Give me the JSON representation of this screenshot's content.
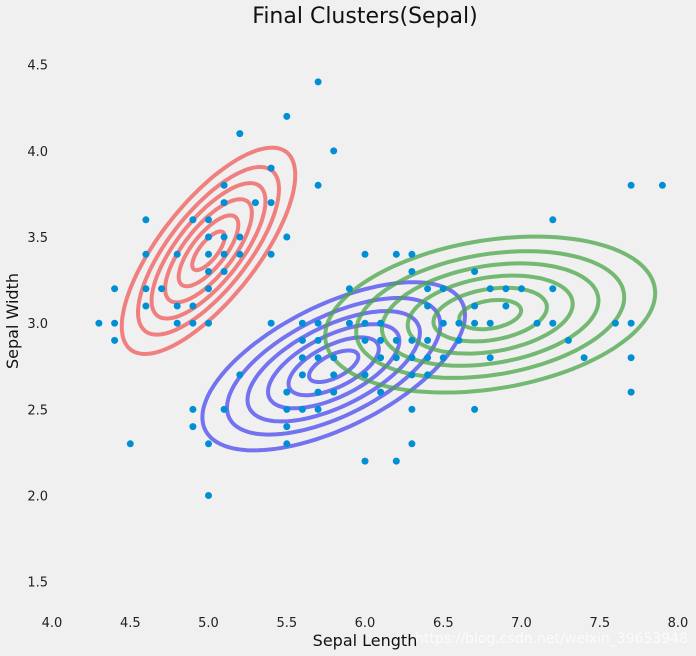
{
  "chart_data": {
    "type": "scatter",
    "title": "Final Clusters(Sepal)",
    "xlabel": "Sepal Length",
    "ylabel": "Sepal Width",
    "xlim": [
      4.0,
      8.0
    ],
    "ylim": [
      1.15,
      4.8
    ],
    "grid": false,
    "xticks": [
      "4.0",
      "4.5",
      "5.0",
      "5.5",
      "6.0",
      "6.5",
      "7.0",
      "7.5",
      "8.0"
    ],
    "yticks": [
      "1.5",
      "2.0",
      "2.5",
      "3.0",
      "3.5",
      "4.0",
      "4.5"
    ],
    "point_color": "#008fd5",
    "points": [
      [
        4.3,
        3.0
      ],
      [
        4.4,
        2.9
      ],
      [
        4.4,
        3.0
      ],
      [
        4.4,
        3.2
      ],
      [
        4.5,
        2.3
      ],
      [
        4.6,
        3.1
      ],
      [
        4.6,
        3.2
      ],
      [
        4.6,
        3.4
      ],
      [
        4.6,
        3.6
      ],
      [
        4.7,
        3.2
      ],
      [
        4.8,
        3.0
      ],
      [
        4.8,
        3.1
      ],
      [
        4.8,
        3.4
      ],
      [
        4.9,
        2.4
      ],
      [
        4.9,
        2.5
      ],
      [
        4.9,
        3.0
      ],
      [
        4.9,
        3.1
      ],
      [
        4.9,
        3.6
      ],
      [
        5.0,
        2.0
      ],
      [
        5.0,
        2.3
      ],
      [
        5.0,
        3.0
      ],
      [
        5.0,
        3.2
      ],
      [
        5.0,
        3.3
      ],
      [
        5.0,
        3.4
      ],
      [
        5.0,
        3.5
      ],
      [
        5.0,
        3.6
      ],
      [
        5.1,
        2.5
      ],
      [
        5.1,
        3.3
      ],
      [
        5.1,
        3.4
      ],
      [
        5.1,
        3.5
      ],
      [
        5.1,
        3.7
      ],
      [
        5.1,
        3.8
      ],
      [
        5.2,
        2.7
      ],
      [
        5.2,
        3.4
      ],
      [
        5.2,
        3.5
      ],
      [
        5.2,
        4.1
      ],
      [
        5.3,
        3.7
      ],
      [
        5.4,
        3.0
      ],
      [
        5.4,
        3.4
      ],
      [
        5.4,
        3.7
      ],
      [
        5.4,
        3.9
      ],
      [
        5.5,
        2.3
      ],
      [
        5.5,
        2.4
      ],
      [
        5.5,
        2.5
      ],
      [
        5.5,
        2.6
      ],
      [
        5.5,
        3.5
      ],
      [
        5.5,
        4.2
      ],
      [
        5.6,
        2.5
      ],
      [
        5.6,
        2.7
      ],
      [
        5.6,
        2.8
      ],
      [
        5.6,
        2.9
      ],
      [
        5.6,
        3.0
      ],
      [
        5.7,
        2.5
      ],
      [
        5.7,
        2.6
      ],
      [
        5.7,
        2.8
      ],
      [
        5.7,
        2.9
      ],
      [
        5.7,
        3.0
      ],
      [
        5.7,
        3.8
      ],
      [
        5.7,
        4.4
      ],
      [
        5.8,
        2.6
      ],
      [
        5.8,
        2.7
      ],
      [
        5.8,
        2.8
      ],
      [
        5.8,
        4.0
      ],
      [
        5.9,
        3.0
      ],
      [
        5.9,
        3.2
      ],
      [
        6.0,
        2.2
      ],
      [
        6.0,
        2.7
      ],
      [
        6.0,
        2.9
      ],
      [
        6.0,
        3.0
      ],
      [
        6.0,
        3.4
      ],
      [
        6.1,
        2.6
      ],
      [
        6.1,
        2.8
      ],
      [
        6.1,
        2.9
      ],
      [
        6.1,
        3.0
      ],
      [
        6.2,
        2.2
      ],
      [
        6.2,
        2.8
      ],
      [
        6.2,
        2.9
      ],
      [
        6.2,
        3.4
      ],
      [
        6.3,
        2.3
      ],
      [
        6.3,
        2.5
      ],
      [
        6.3,
        2.7
      ],
      [
        6.3,
        2.8
      ],
      [
        6.3,
        2.9
      ],
      [
        6.3,
        3.3
      ],
      [
        6.3,
        3.4
      ],
      [
        6.4,
        2.7
      ],
      [
        6.4,
        2.8
      ],
      [
        6.4,
        2.9
      ],
      [
        6.4,
        3.1
      ],
      [
        6.4,
        3.2
      ],
      [
        6.5,
        2.8
      ],
      [
        6.5,
        3.0
      ],
      [
        6.5,
        3.2
      ],
      [
        6.6,
        2.9
      ],
      [
        6.6,
        3.0
      ],
      [
        6.7,
        2.5
      ],
      [
        6.7,
        3.0
      ],
      [
        6.7,
        3.1
      ],
      [
        6.7,
        3.3
      ],
      [
        6.8,
        2.8
      ],
      [
        6.8,
        3.0
      ],
      [
        6.8,
        3.2
      ],
      [
        6.9,
        3.1
      ],
      [
        6.9,
        3.2
      ],
      [
        7.0,
        3.2
      ],
      [
        7.1,
        3.0
      ],
      [
        7.2,
        3.0
      ],
      [
        7.2,
        3.2
      ],
      [
        7.2,
        3.6
      ],
      [
        7.3,
        2.9
      ],
      [
        7.4,
        2.8
      ],
      [
        7.6,
        3.0
      ],
      [
        7.7,
        2.6
      ],
      [
        7.7,
        2.8
      ],
      [
        7.7,
        3.0
      ],
      [
        7.7,
        3.8
      ],
      [
        7.9,
        3.8
      ]
    ],
    "clusters": [
      {
        "color": "#f05a5a",
        "mean": [
          5.0,
          3.42
        ],
        "cov": [
          [
            0.12,
            0.095
          ],
          [
            0.095,
            0.14
          ]
        ]
      },
      {
        "color": "#4a4af0",
        "mean": [
          5.8,
          2.75
        ],
        "cov": [
          [
            0.275,
            0.097
          ],
          [
            0.097,
            0.093
          ]
        ]
      },
      {
        "color": "#4aa64a",
        "mean": [
          6.8,
          3.05
        ],
        "cov": [
          [
            0.434,
            0.051
          ],
          [
            0.051,
            0.08
          ]
        ]
      }
    ],
    "contour_scales": [
      0.3,
      0.55,
      0.8,
      1.05,
      1.3,
      1.6
    ]
  },
  "watermark": "https://blog.csdn.net/weixin_39653948"
}
